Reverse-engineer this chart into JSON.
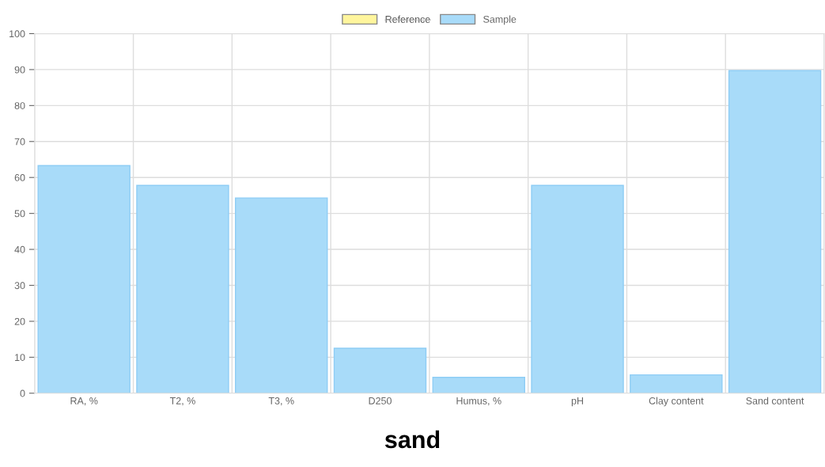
{
  "chart_data": {
    "type": "bar",
    "title": "sand",
    "categories": [
      "RA, %",
      "T2, %",
      "T3, %",
      "D250",
      "Humus, %",
      "pH",
      "Clay content",
      "Sand content"
    ],
    "series": [
      {
        "name": "Reference",
        "color": "#fff59d",
        "values": [
          null,
          null,
          null,
          null,
          null,
          null,
          null,
          null
        ]
      },
      {
        "name": "Sample",
        "color": "#a8dbf9",
        "values": [
          63.3,
          57.8,
          54.3,
          12.5,
          4.4,
          57.8,
          5.1,
          89.7
        ]
      }
    ],
    "ylim": [
      0,
      100
    ],
    "yticks": [
      0,
      10,
      20,
      30,
      40,
      50,
      60,
      70,
      80,
      90,
      100
    ],
    "grid": true,
    "legend": "top"
  }
}
